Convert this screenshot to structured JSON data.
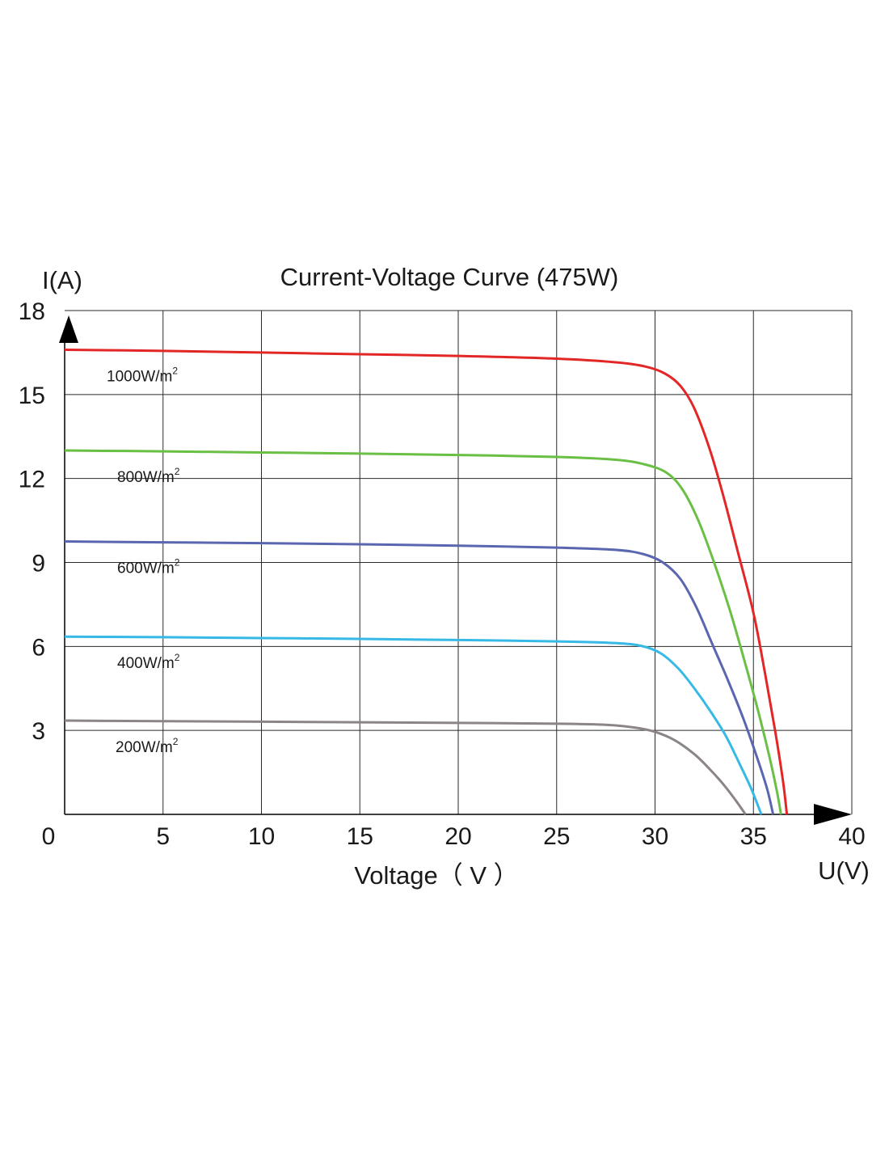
{
  "chart_data": {
    "type": "line",
    "title": "Current-Voltage  Curve (475W)",
    "xlabel": "Voltage（ V ）",
    "x_unit_label": "U(V)",
    "y_unit_label": "I(A)",
    "xlim": [
      0,
      40
    ],
    "ylim": [
      0,
      18
    ],
    "x_ticks": [
      "0",
      "5",
      "10",
      "15",
      "20",
      "25",
      "30",
      "35",
      "40"
    ],
    "y_ticks": [
      "3",
      "6",
      "9",
      "12",
      "15",
      "18"
    ],
    "grid": true,
    "series": [
      {
        "name": "1000W/m2",
        "label_text": "1000W/m",
        "label_sup": "2",
        "color": "#e32626",
        "points": [
          [
            0,
            16.6
          ],
          [
            5,
            16.56
          ],
          [
            10,
            16.5
          ],
          [
            15,
            16.44
          ],
          [
            20,
            16.38
          ],
          [
            25,
            16.28
          ],
          [
            28,
            16.15
          ],
          [
            29.5,
            16.0
          ],
          [
            30.5,
            15.75
          ],
          [
            31.3,
            15.3
          ],
          [
            32,
            14.5
          ],
          [
            32.8,
            13.0
          ],
          [
            33.5,
            11.3
          ],
          [
            34.2,
            9.4
          ],
          [
            35,
            7.2
          ],
          [
            35.6,
            5.0
          ],
          [
            36.1,
            3.0
          ],
          [
            36.5,
            1.2
          ],
          [
            36.7,
            0
          ]
        ]
      },
      {
        "name": "800W/m2",
        "label_text": "800W/m",
        "label_sup": "2",
        "color": "#6abf45",
        "points": [
          [
            0,
            13.0
          ],
          [
            5,
            12.97
          ],
          [
            10,
            12.93
          ],
          [
            15,
            12.89
          ],
          [
            20,
            12.84
          ],
          [
            25,
            12.77
          ],
          [
            28,
            12.67
          ],
          [
            29.5,
            12.5
          ],
          [
            30.6,
            12.2
          ],
          [
            31.4,
            11.6
          ],
          [
            32.2,
            10.5
          ],
          [
            33,
            9.0
          ],
          [
            33.8,
            7.3
          ],
          [
            34.5,
            5.6
          ],
          [
            35.2,
            3.8
          ],
          [
            35.8,
            2.1
          ],
          [
            36.2,
            0.8
          ],
          [
            36.4,
            0
          ]
        ]
      },
      {
        "name": "600W/m2",
        "label_text": "600W/m",
        "label_sup": "2",
        "color": "#5a66b0",
        "points": [
          [
            0,
            9.75
          ],
          [
            5,
            9.72
          ],
          [
            10,
            9.69
          ],
          [
            15,
            9.65
          ],
          [
            20,
            9.6
          ],
          [
            25,
            9.53
          ],
          [
            28,
            9.45
          ],
          [
            29.4,
            9.3
          ],
          [
            30.4,
            9.0
          ],
          [
            31.3,
            8.4
          ],
          [
            32.1,
            7.4
          ],
          [
            32.9,
            6.1
          ],
          [
            33.7,
            4.8
          ],
          [
            34.5,
            3.4
          ],
          [
            35.2,
            2.0
          ],
          [
            35.7,
            0.9
          ],
          [
            36.0,
            0
          ]
        ]
      },
      {
        "name": "400W/m2",
        "label_text": "400W/m",
        "label_sup": "2",
        "color": "#37b9e6",
        "points": [
          [
            0,
            6.35
          ],
          [
            5,
            6.33
          ],
          [
            10,
            6.3
          ],
          [
            15,
            6.27
          ],
          [
            20,
            6.23
          ],
          [
            25,
            6.18
          ],
          [
            28,
            6.12
          ],
          [
            29.3,
            6.02
          ],
          [
            30.3,
            5.75
          ],
          [
            31.2,
            5.2
          ],
          [
            32,
            4.5
          ],
          [
            32.8,
            3.7
          ],
          [
            33.6,
            2.8
          ],
          [
            34.3,
            1.8
          ],
          [
            34.9,
            0.9
          ],
          [
            35.4,
            0
          ]
        ]
      },
      {
        "name": "200W/m2",
        "label_text": "200W/m",
        "label_sup": "2",
        "color": "#8c8587",
        "points": [
          [
            0,
            3.35
          ],
          [
            5,
            3.33
          ],
          [
            10,
            3.31
          ],
          [
            15,
            3.29
          ],
          [
            20,
            3.27
          ],
          [
            25,
            3.24
          ],
          [
            27.5,
            3.2
          ],
          [
            29,
            3.1
          ],
          [
            30,
            2.95
          ],
          [
            31,
            2.65
          ],
          [
            32,
            2.15
          ],
          [
            32.8,
            1.6
          ],
          [
            33.5,
            1.05
          ],
          [
            34.1,
            0.5
          ],
          [
            34.6,
            0
          ]
        ]
      }
    ]
  }
}
